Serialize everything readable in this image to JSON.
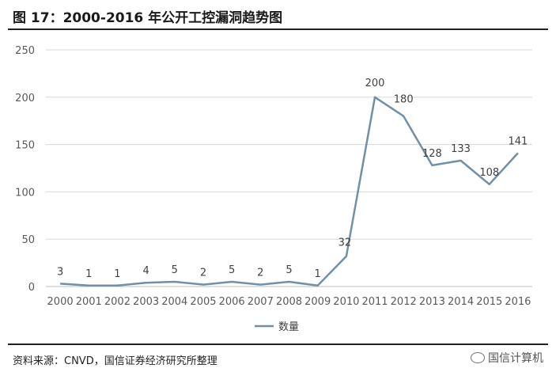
{
  "header": {
    "title": "图 17：2000-2016 年公开工控漏洞趋势图"
  },
  "footer": {
    "source": "资料来源：CNVD，国信证券经济研究所整理",
    "watermark": "国信计算机"
  },
  "chart_data": {
    "type": "line",
    "title": "",
    "xlabel": "",
    "ylabel": "",
    "categories": [
      "2000",
      "2001",
      "2002",
      "2003",
      "2004",
      "2005",
      "2006",
      "2007",
      "2008",
      "2009",
      "2010",
      "2011",
      "2012",
      "2013",
      "2014",
      "2015",
      "2016"
    ],
    "series": [
      {
        "name": "数量",
        "values": [
          3,
          1,
          1,
          4,
          5,
          2,
          5,
          2,
          5,
          1,
          32,
          200,
          180,
          128,
          133,
          108,
          141
        ]
      }
    ],
    "yticks": [
      "0",
      "50",
      "100",
      "150",
      "200",
      "250"
    ],
    "ylim": [
      0,
      250
    ],
    "grid": "horizontal",
    "legend": "bottom-center",
    "colors": {
      "line": "#6f90a8",
      "grid": "#d9d9d9",
      "axis": "#bfbfbf",
      "tick_text": "#595959"
    }
  }
}
